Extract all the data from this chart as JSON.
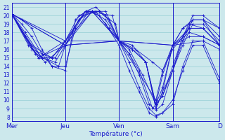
{
  "xlabel": "Température (°c)",
  "bg_color": "#cce8ec",
  "line_color": "#1a1acc",
  "grid_color": "#88c8d0",
  "yticks": [
    8,
    9,
    10,
    11,
    12,
    13,
    14,
    15,
    16,
    17,
    18,
    19,
    20,
    21
  ],
  "ylim": [
    7.5,
    21.5
  ],
  "day_labels": [
    "Mer",
    "Jeu",
    "Ven",
    "Sam",
    "D"
  ],
  "day_positions": [
    0,
    80,
    160,
    240,
    310
  ],
  "xlim": [
    0,
    310
  ],
  "series": [
    {
      "x": [
        0,
        15,
        30,
        45,
        60,
        80,
        95,
        110,
        125,
        140,
        160,
        175,
        190,
        205,
        215,
        225,
        240,
        255,
        270,
        285,
        310
      ],
      "y": [
        20.2,
        19.5,
        18.5,
        16.0,
        14.0,
        13.5,
        19.5,
        20.5,
        21.0,
        20.0,
        17.0,
        14.5,
        11.5,
        9.0,
        8.2,
        8.5,
        9.5,
        14.0,
        17.0,
        17.0,
        12.5
      ]
    },
    {
      "x": [
        0,
        15,
        30,
        45,
        60,
        80,
        95,
        110,
        125,
        140,
        160,
        175,
        190,
        205,
        215,
        225,
        240,
        255,
        270,
        285,
        310
      ],
      "y": [
        20.2,
        19.0,
        17.5,
        15.5,
        14.0,
        14.0,
        18.5,
        20.5,
        20.5,
        19.0,
        16.5,
        13.5,
        11.0,
        8.5,
        8.0,
        8.5,
        10.0,
        13.5,
        16.5,
        16.5,
        12.0
      ]
    },
    {
      "x": [
        0,
        20,
        45,
        65,
        80,
        100,
        115,
        130,
        145,
        160,
        175,
        190,
        205,
        215,
        225,
        240,
        255,
        270,
        285,
        310
      ],
      "y": [
        20.2,
        18.0,
        15.0,
        14.5,
        16.5,
        19.5,
        20.5,
        20.5,
        19.5,
        17.0,
        15.5,
        13.0,
        9.5,
        8.8,
        9.5,
        13.5,
        16.5,
        19.0,
        19.0,
        17.0
      ]
    },
    {
      "x": [
        0,
        20,
        45,
        65,
        80,
        100,
        115,
        130,
        145,
        160,
        175,
        190,
        210,
        225,
        240,
        255,
        270,
        285,
        310
      ],
      "y": [
        20.2,
        17.5,
        15.0,
        15.0,
        17.0,
        20.0,
        20.5,
        20.0,
        18.5,
        17.0,
        15.5,
        13.5,
        9.0,
        10.5,
        13.5,
        17.5,
        19.5,
        19.5,
        17.5
      ]
    },
    {
      "x": [
        0,
        25,
        50,
        80,
        100,
        120,
        140,
        160,
        175,
        195,
        215,
        225,
        240,
        255,
        270,
        285,
        310
      ],
      "y": [
        20.2,
        16.5,
        14.5,
        16.5,
        19.5,
        20.5,
        19.5,
        17.0,
        16.0,
        13.0,
        9.5,
        10.5,
        14.0,
        17.5,
        20.0,
        20.0,
        18.5
      ]
    },
    {
      "x": [
        0,
        30,
        60,
        80,
        105,
        130,
        155,
        160,
        180,
        200,
        215,
        225,
        240,
        255,
        270,
        285,
        310
      ],
      "y": [
        20.2,
        16.5,
        15.0,
        17.0,
        20.0,
        20.5,
        19.0,
        17.0,
        16.0,
        14.5,
        9.0,
        11.0,
        13.5,
        17.0,
        19.5,
        19.5,
        18.5
      ]
    },
    {
      "x": [
        0,
        30,
        60,
        80,
        110,
        140,
        160,
        180,
        200,
        215,
        225,
        240,
        255,
        270,
        285,
        310
      ],
      "y": [
        20.2,
        16.0,
        15.0,
        17.0,
        20.5,
        20.5,
        17.0,
        16.0,
        14.5,
        9.0,
        11.0,
        16.5,
        18.5,
        19.5,
        19.5,
        16.5
      ]
    },
    {
      "x": [
        0,
        35,
        70,
        80,
        115,
        150,
        160,
        180,
        200,
        215,
        225,
        240,
        255,
        265,
        285,
        310
      ],
      "y": [
        20.2,
        15.5,
        14.0,
        16.5,
        20.5,
        20.0,
        17.0,
        16.5,
        14.5,
        9.5,
        11.5,
        16.5,
        18.5,
        19.0,
        18.5,
        16.5
      ]
    },
    {
      "x": [
        0,
        40,
        80,
        120,
        160,
        185,
        210,
        225,
        240,
        265,
        285,
        310
      ],
      "y": [
        20.2,
        15.0,
        16.5,
        20.5,
        17.0,
        16.0,
        14.5,
        13.5,
        16.0,
        18.5,
        18.5,
        16.5
      ]
    },
    {
      "x": [
        0,
        40,
        80,
        120,
        160,
        180,
        200,
        215,
        225,
        240,
        265,
        285,
        310
      ],
      "y": [
        20.2,
        15.0,
        17.0,
        20.5,
        17.0,
        16.0,
        14.5,
        9.5,
        13.0,
        16.5,
        18.5,
        18.5,
        16.5
      ]
    },
    {
      "x": [
        0,
        80,
        160,
        215,
        225,
        240,
        265,
        285,
        310
      ],
      "y": [
        20.2,
        17.0,
        17.0,
        10.0,
        13.5,
        16.5,
        18.0,
        17.5,
        16.5
      ]
    },
    {
      "x": [
        0,
        80,
        160,
        240,
        265,
        285,
        310
      ],
      "y": [
        20.2,
        16.5,
        17.0,
        16.5,
        17.5,
        17.5,
        16.5
      ]
    },
    {
      "x": [
        0,
        80,
        160,
        240,
        285,
        310
      ],
      "y": [
        20.2,
        16.5,
        17.0,
        16.5,
        17.0,
        16.0
      ]
    }
  ]
}
